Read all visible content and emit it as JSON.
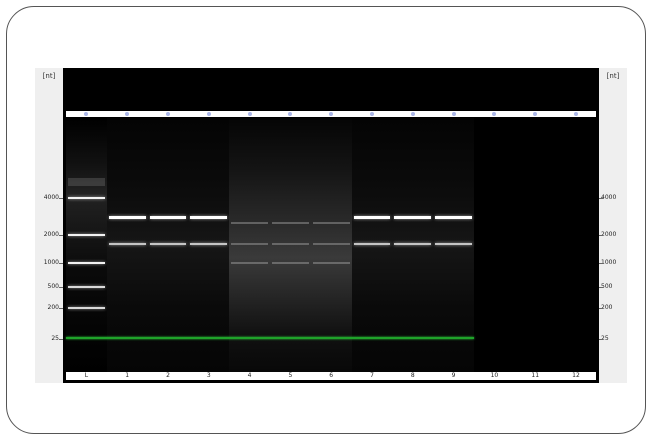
{
  "gel": {
    "unit_label_left": "[nt]",
    "unit_label_right": "[nt]",
    "size_ticks": [
      "4000",
      "2000",
      "1000",
      "500",
      "200",
      "25"
    ],
    "lane_labels": [
      "L",
      "1",
      "2",
      "3",
      "4",
      "5",
      "6",
      "7",
      "8",
      "9",
      "10",
      "11",
      "12"
    ],
    "lower_marker_nt": 25,
    "lanes": [
      {
        "label": "L",
        "type": "ladder",
        "bands_nt": [
          4000,
          2000,
          1000,
          500,
          200,
          25
        ]
      },
      {
        "label": "1",
        "type": "sample",
        "bands_nt": [
          2800,
          1600,
          25
        ],
        "smear": "low"
      },
      {
        "label": "2",
        "type": "sample",
        "bands_nt": [
          2800,
          1600,
          25
        ],
        "smear": "low"
      },
      {
        "label": "3",
        "type": "sample",
        "bands_nt": [
          2800,
          1600,
          25
        ],
        "smear": "low"
      },
      {
        "label": "4",
        "type": "sample",
        "bands_nt": [
          25
        ],
        "smear": "high"
      },
      {
        "label": "5",
        "type": "sample",
        "bands_nt": [
          25
        ],
        "smear": "high"
      },
      {
        "label": "6",
        "type": "sample",
        "bands_nt": [
          25
        ],
        "smear": "high"
      },
      {
        "label": "7",
        "type": "sample",
        "bands_nt": [
          2800,
          1600,
          25
        ],
        "smear": "low"
      },
      {
        "label": "8",
        "type": "sample",
        "bands_nt": [
          2800,
          1600,
          25
        ],
        "smear": "low"
      },
      {
        "label": "9",
        "type": "sample",
        "bands_nt": [
          2800,
          1600,
          25
        ],
        "smear": "low"
      },
      {
        "label": "10",
        "type": "empty",
        "bands_nt": []
      },
      {
        "label": "11",
        "type": "empty",
        "bands_nt": []
      },
      {
        "label": "12",
        "type": "empty",
        "bands_nt": []
      }
    ],
    "colors": {
      "background": "#000000",
      "marker": "#1fa32a",
      "well": "#aab6e8",
      "band": "#ffffff"
    }
  }
}
